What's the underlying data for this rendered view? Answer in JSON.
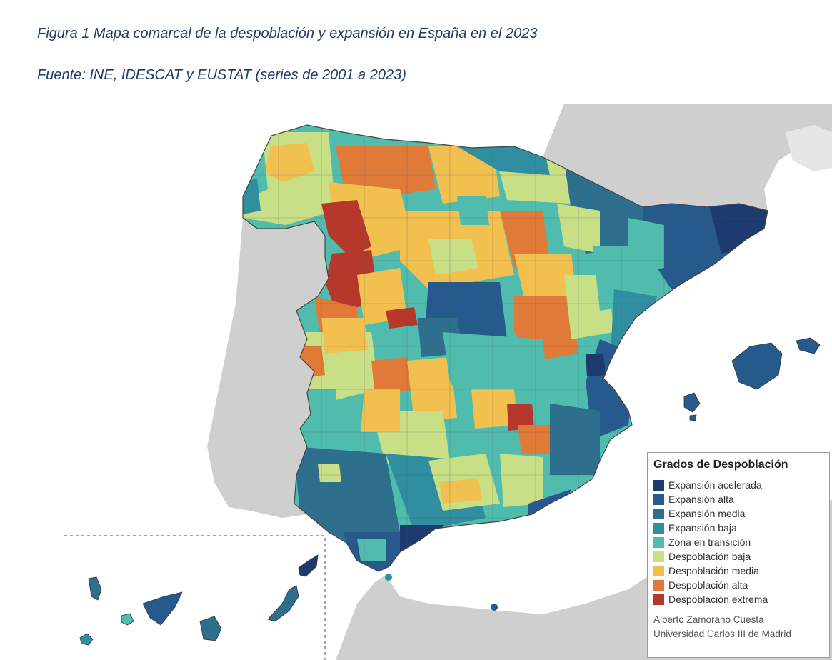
{
  "figure": {
    "title": "Figura 1 Mapa comarcal de la despoblación y expansión en España en el 2023",
    "source": "Fuente: INE, IDESCAT y EUSTAT (series de 2001 a 2023)"
  },
  "map": {
    "subject": "Spain comarcas by depopulation degree",
    "colors": {
      "background_land": "#cfcfcf",
      "sea": "#ffffff"
    }
  },
  "legend": {
    "title": "Grados de Despoblación",
    "items": [
      {
        "label": "Expansión acelerada",
        "color": "#1e3a6e"
      },
      {
        "label": "Expansión alta",
        "color": "#265a8c"
      },
      {
        "label": "Expansión media",
        "color": "#2d6f8c"
      },
      {
        "label": "Expansión baja",
        "color": "#2f8fa0"
      },
      {
        "label": "Zona en transición",
        "color": "#4fbcae"
      },
      {
        "label": "Despoblación baja",
        "color": "#c8df86"
      },
      {
        "label": "Despoblación media",
        "color": "#f2c04e"
      },
      {
        "label": "Despoblación alta",
        "color": "#e07a38"
      },
      {
        "label": "Despoblación extrema",
        "color": "#b5382a"
      }
    ]
  },
  "credit": {
    "author": "Alberto Zamorano Cuesta",
    "institution": "Universidad Carlos III de Madrid"
  }
}
